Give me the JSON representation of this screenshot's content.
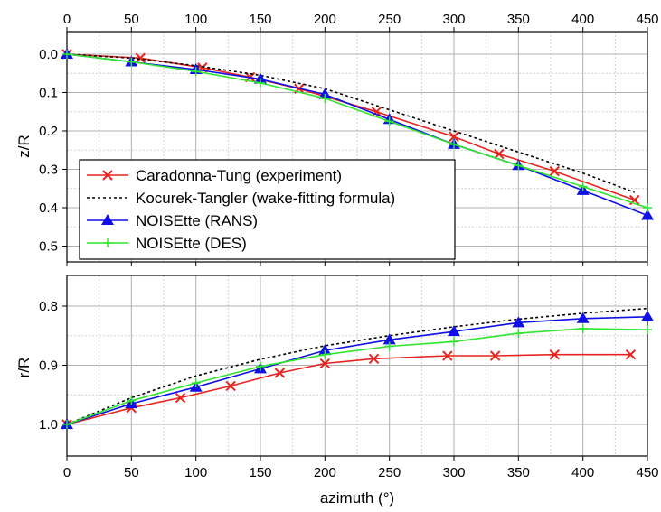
{
  "chart_data": [
    {
      "type": "line",
      "title": "",
      "xlabel": "",
      "ylabel": "z/R",
      "xlim": [
        0,
        450
      ],
      "ylim": [
        0,
        0.5
      ],
      "y_inverted": true,
      "x_axis_position": "top",
      "grid": true,
      "xticks": [
        0,
        50,
        100,
        150,
        200,
        250,
        300,
        350,
        400,
        450
      ],
      "yticks": [
        0.0,
        0.1,
        0.2,
        0.3,
        0.4,
        0.5
      ],
      "ytick_labels": [
        "0.0",
        "0.1",
        "0.2",
        "0.3",
        "0.4",
        "0.5"
      ],
      "legend": {
        "position": "lower-left",
        "entries": [
          "Caradonna-Tung (experiment)",
          "Kocurek-Tangler (wake-fitting formula)",
          "NOISEtte (RANS)",
          "NOISEtte (DES)"
        ]
      },
      "series": [
        {
          "name": "Caradonna-Tung (experiment)",
          "color": "#e8231f",
          "marker": "x",
          "line": "solid",
          "x": [
            0,
            57,
            105,
            142,
            180,
            240,
            300,
            335,
            378,
            440
          ],
          "y": [
            0.0,
            0.01,
            0.035,
            0.06,
            0.09,
            0.15,
            0.215,
            0.26,
            0.305,
            0.38
          ]
        },
        {
          "name": "Kocurek-Tangler (wake-fitting formula)",
          "color": "#000000",
          "marker": "none",
          "line": "dotted",
          "x": [
            0,
            50,
            100,
            150,
            200,
            250,
            300,
            350,
            400,
            440
          ],
          "y": [
            0.0,
            0.01,
            0.03,
            0.055,
            0.09,
            0.145,
            0.2,
            0.255,
            0.31,
            0.36
          ]
        },
        {
          "name": "NOISEtte (RANS)",
          "color": "#1010e6",
          "marker": "triangle",
          "line": "solid",
          "x": [
            0,
            50,
            100,
            150,
            200,
            250,
            300,
            350,
            400,
            450
          ],
          "y": [
            0.0,
            0.02,
            0.04,
            0.065,
            0.105,
            0.17,
            0.235,
            0.29,
            0.355,
            0.42
          ]
        },
        {
          "name": "NOISEtte (DES)",
          "color": "#2ee62e",
          "marker": "plus",
          "line": "solid",
          "x": [
            0,
            50,
            100,
            150,
            200,
            250,
            300,
            350,
            400,
            450
          ],
          "y": [
            0.0,
            0.02,
            0.045,
            0.075,
            0.115,
            0.175,
            0.235,
            0.29,
            0.345,
            0.4
          ]
        }
      ]
    },
    {
      "type": "line",
      "title": "",
      "xlabel": "azimuth (°)",
      "ylabel": "r/R",
      "xlim": [
        0,
        450
      ],
      "ylim": [
        0.75,
        1.05
      ],
      "y_inverted": true,
      "grid": true,
      "xticks": [
        0,
        50,
        100,
        150,
        200,
        250,
        300,
        350,
        400,
        450
      ],
      "yticks": [
        0.8,
        0.9,
        1.0
      ],
      "ytick_labels": [
        "0.8",
        "0.9",
        "1.0"
      ],
      "series": [
        {
          "name": "Caradonna-Tung (experiment)",
          "color": "#e8231f",
          "marker": "x",
          "line": "solid",
          "x": [
            0,
            50,
            88,
            127,
            165,
            200,
            238,
            295,
            332,
            378,
            437
          ],
          "y": [
            1.0,
            0.972,
            0.955,
            0.935,
            0.913,
            0.897,
            0.889,
            0.884,
            0.884,
            0.882,
            0.882
          ]
        },
        {
          "name": "Kocurek-Tangler (wake-fitting formula)",
          "color": "#000000",
          "marker": "none",
          "line": "dotted",
          "x": [
            0,
            50,
            100,
            150,
            200,
            250,
            300,
            350,
            400,
            450
          ],
          "y": [
            1.0,
            0.955,
            0.918,
            0.89,
            0.867,
            0.85,
            0.835,
            0.822,
            0.812,
            0.804
          ]
        },
        {
          "name": "NOISEtte (RANS)",
          "color": "#1010e6",
          "marker": "triangle",
          "line": "solid",
          "x": [
            0,
            50,
            100,
            150,
            200,
            250,
            300,
            350,
            400,
            450
          ],
          "y": [
            1.0,
            0.965,
            0.937,
            0.906,
            0.875,
            0.857,
            0.843,
            0.828,
            0.821,
            0.818
          ]
        },
        {
          "name": "NOISEtte (DES)",
          "color": "#2ee62e",
          "marker": "plus",
          "line": "solid",
          "x": [
            0,
            50,
            100,
            150,
            200,
            250,
            300,
            350,
            400,
            450
          ],
          "y": [
            1.0,
            0.96,
            0.93,
            0.902,
            0.882,
            0.868,
            0.86,
            0.846,
            0.838,
            0.84
          ]
        }
      ]
    }
  ]
}
